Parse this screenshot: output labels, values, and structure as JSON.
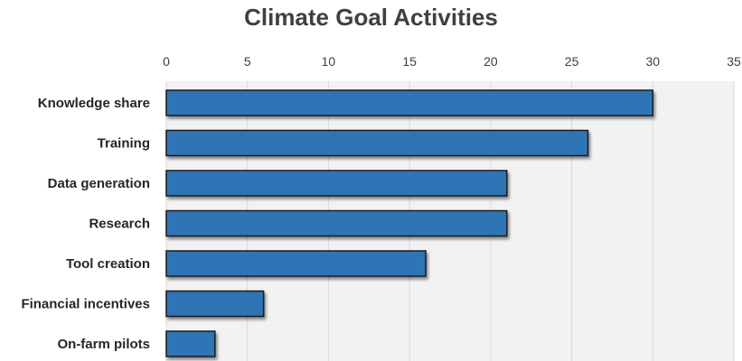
{
  "chart_data": {
    "type": "bar",
    "orientation": "horizontal",
    "title": "Climate Goal Activities",
    "categories": [
      "Knowledge share",
      "Training",
      "Data generation",
      "Research",
      "Tool creation",
      "Financial incentives",
      "On-farm pilots"
    ],
    "values": [
      30,
      26,
      21,
      21,
      16,
      6,
      3
    ],
    "xlim": [
      0,
      35
    ],
    "xticks": [
      "0",
      "5",
      "10",
      "15",
      "20",
      "25",
      "30",
      "35"
    ],
    "xaxis_position": "top",
    "grid": true,
    "legend": "none",
    "colors": {
      "bar": "#2e75b6",
      "bar_border": "#1a1a1a",
      "plot_background": "#f2f2f2",
      "gridline": "#d9d9d9"
    }
  }
}
